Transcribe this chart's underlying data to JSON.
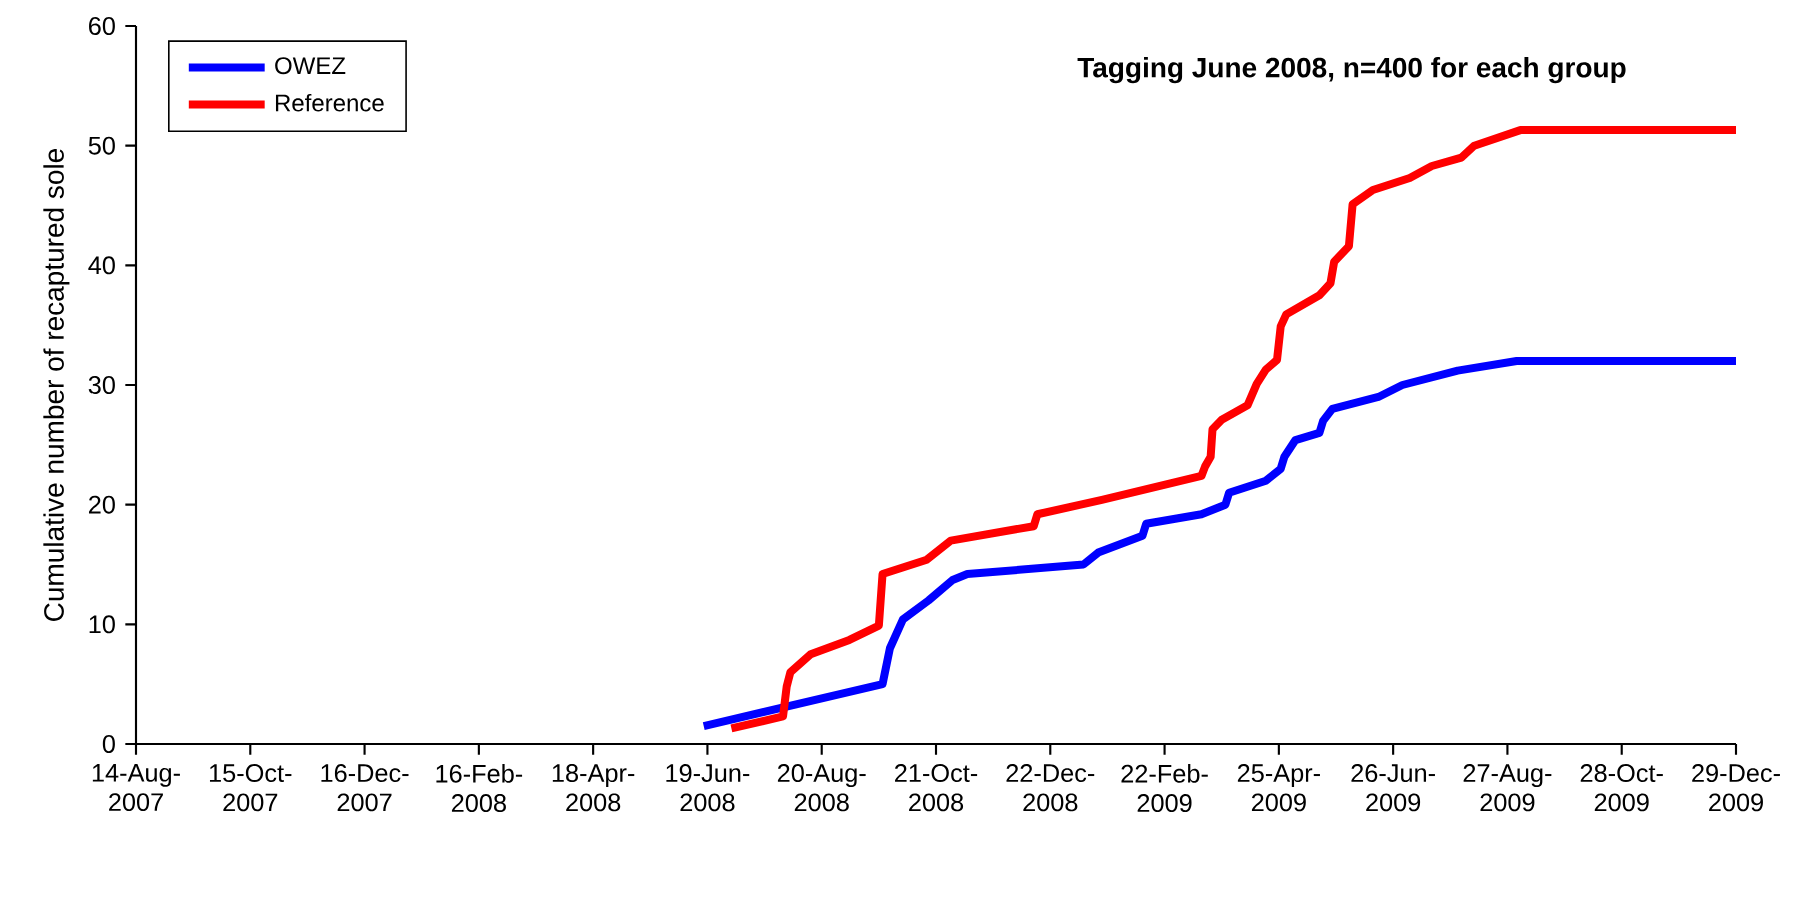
{
  "chart_data": {
    "type": "line",
    "title": "Tagging June 2008, n=400 for each group",
    "ylabel": "Cumulative number of recaptured sole",
    "xlim": [
      "2007-08-14",
      "2009-12-29"
    ],
    "ylim": [
      0,
      60
    ],
    "yticks": [
      0,
      10,
      20,
      30,
      40,
      50,
      60
    ],
    "xticks": [
      {
        "value": "2007-08-14",
        "label": "14-Aug-2007"
      },
      {
        "value": "2007-10-15",
        "label": "15-Oct-2007"
      },
      {
        "value": "2007-12-16",
        "label": "16-Dec-2007"
      },
      {
        "value": "2008-02-16",
        "label": "16-Feb-2008"
      },
      {
        "value": "2008-04-18",
        "label": "18-Apr-2008"
      },
      {
        "value": "2008-06-19",
        "label": "19-Jun-2008"
      },
      {
        "value": "2008-08-20",
        "label": "20-Aug-2008"
      },
      {
        "value": "2008-10-21",
        "label": "21-Oct-2008"
      },
      {
        "value": "2008-12-22",
        "label": "22-Dec-2008"
      },
      {
        "value": "2009-02-22",
        "label": "22-Feb-2009"
      },
      {
        "value": "2009-04-25",
        "label": "25-Apr-2009"
      },
      {
        "value": "2009-06-26",
        "label": "26-Jun-2009"
      },
      {
        "value": "2009-08-27",
        "label": "27-Aug-2009"
      },
      {
        "value": "2009-10-28",
        "label": "28-Oct-2009"
      },
      {
        "value": "2009-12-29",
        "label": "29-Dec-2009"
      }
    ],
    "legend": "top left",
    "series": [
      {
        "name": "OWEZ",
        "color": "#0000ff",
        "x": [
          "2008-06-17",
          "2008-09-22",
          "2008-09-26",
          "2008-10-03",
          "2008-10-17",
          "2008-10-30",
          "2008-11-07",
          "2009-01-09",
          "2009-01-17",
          "2009-02-10",
          "2009-02-12",
          "2009-03-14",
          "2009-03-27",
          "2009-03-29",
          "2009-04-18",
          "2009-04-26",
          "2009-04-28",
          "2009-05-04",
          "2009-05-17",
          "2009-05-19",
          "2009-05-24",
          "2009-06-18",
          "2009-07-01",
          "2009-07-31",
          "2009-09-01",
          "2009-12-29"
        ],
        "values": [
          1.5,
          5,
          8,
          10.4,
          12,
          13.7,
          14.2,
          15,
          16,
          17.4,
          18.4,
          19.2,
          20,
          21,
          22,
          23,
          24,
          25.4,
          26,
          27,
          28,
          29,
          30,
          31.2,
          32,
          32
        ]
      },
      {
        "name": "Reference",
        "color": "#ff0000",
        "x": [
          "2008-07-02",
          "2008-07-30",
          "2008-08-01",
          "2008-08-03",
          "2008-08-14",
          "2008-09-04",
          "2008-09-20",
          "2008-09-22",
          "2008-10-16",
          "2008-10-29",
          "2008-12-13",
          "2008-12-15",
          "2009-01-19",
          "2009-03-14",
          "2009-03-16",
          "2009-03-19",
          "2009-03-20",
          "2009-03-25",
          "2009-04-08",
          "2009-04-13",
          "2009-04-18",
          "2009-04-24",
          "2009-04-26",
          "2009-04-29",
          "2009-05-17",
          "2009-05-23",
          "2009-05-25",
          "2009-06-02",
          "2009-06-04",
          "2009-06-15",
          "2009-07-05",
          "2009-07-17",
          "2009-08-02",
          "2009-08-09",
          "2009-09-03",
          "2009-12-29"
        ],
        "values": [
          1.3,
          2.3,
          4.8,
          6,
          7.5,
          8.7,
          9.9,
          14.2,
          15.4,
          17,
          18.2,
          19.2,
          20.4,
          22.4,
          23.2,
          24,
          26.3,
          27.1,
          28.3,
          30.1,
          31.3,
          32.1,
          34.9,
          35.9,
          37.5,
          38.5,
          40.3,
          41.6,
          45.1,
          46.3,
          47.3,
          48.3,
          49,
          50,
          51.3,
          51.3
        ]
      }
    ]
  }
}
